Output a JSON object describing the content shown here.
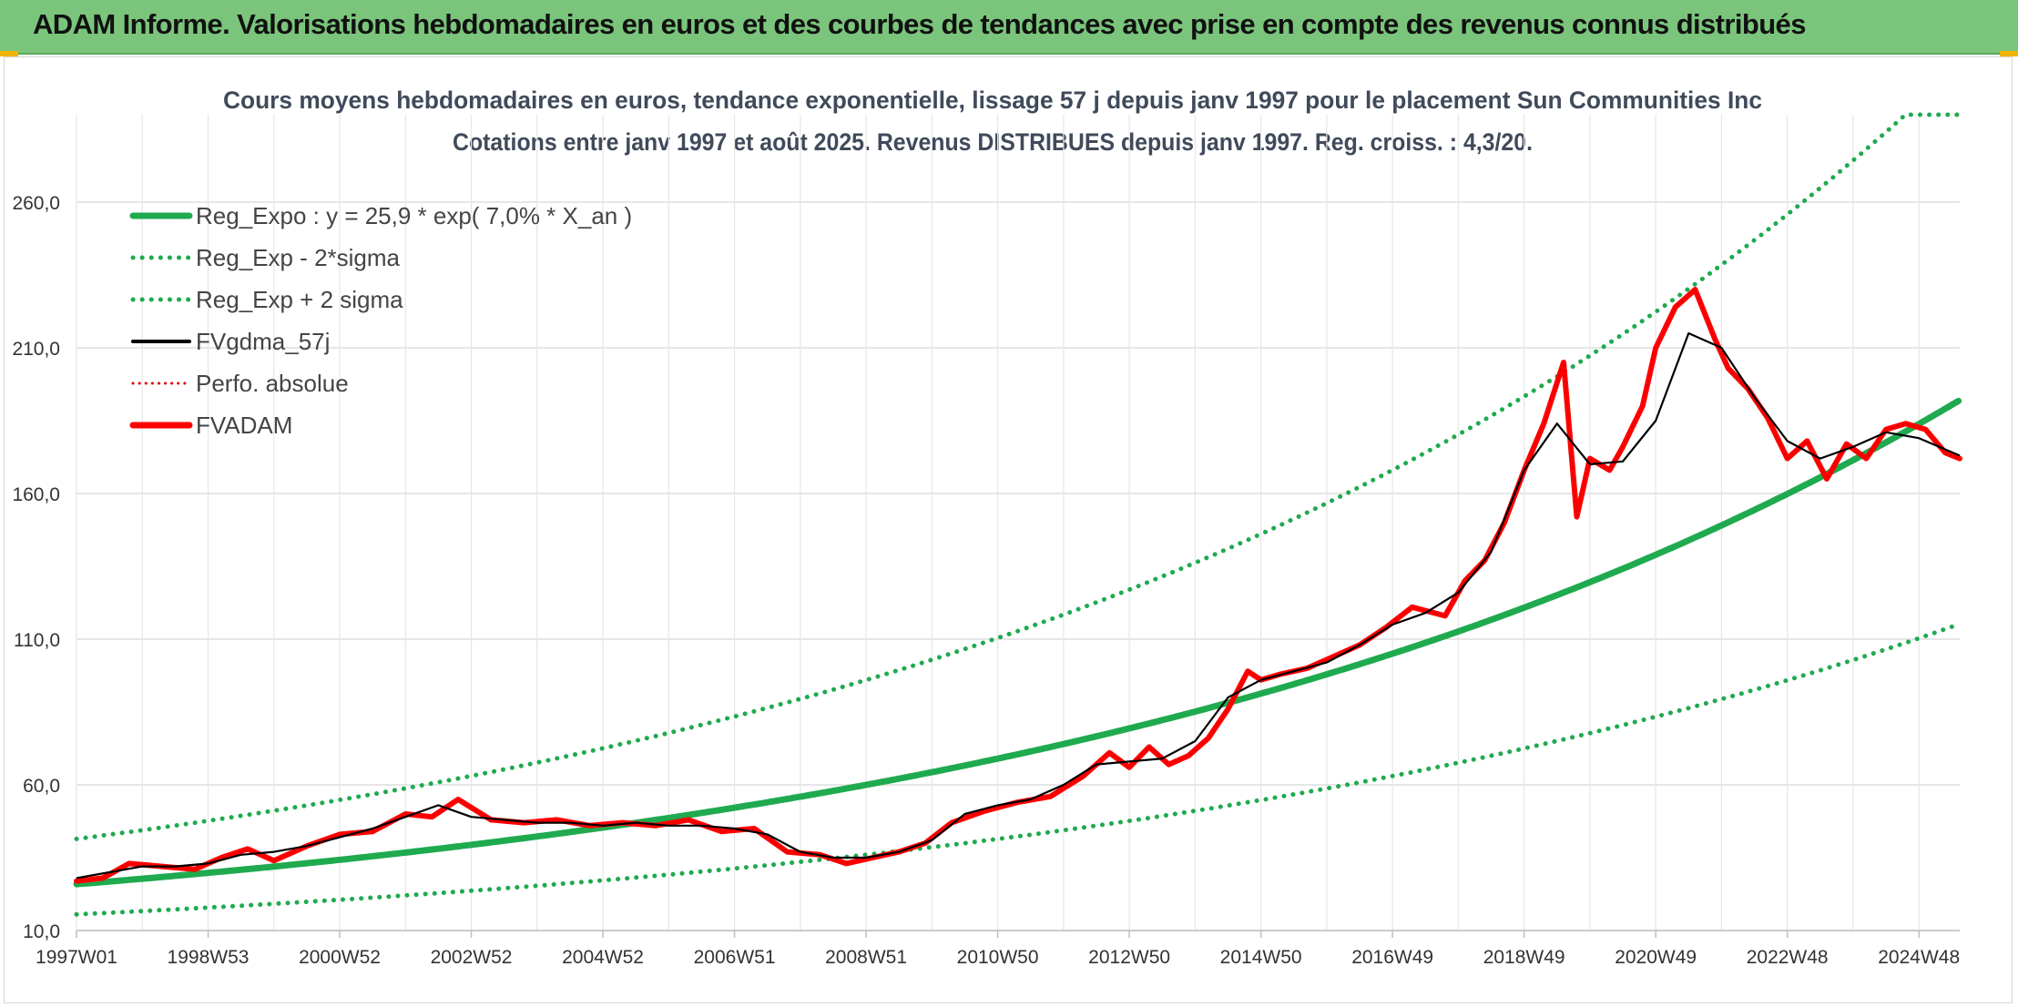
{
  "banner": {
    "title": "ADAM Informe. Valorisations hebdomadaires en euros et des courbes de tendances avec prise en compte des revenus connus distribués"
  },
  "chart_data": {
    "type": "line",
    "title": "Cours moyens hebdomadaires en euros, tendance exponentielle, lissage 57 j depuis janv 1997 pour le placement Sun Communities Inc",
    "subtitle": "Cotations entre janv 1997 et août 2025. Revenus DISTRIBUES depuis janv 1997. Reg. croiss. : 4,3/20.",
    "xlabel": "",
    "ylabel": "",
    "x_range": [
      1997.0,
      2025.62
    ],
    "ylim": [
      10,
      290
    ],
    "y_ticks": [
      10,
      60,
      110,
      160,
      210,
      260
    ],
    "y_tick_labels": [
      "10,0",
      "60,0",
      "110,0",
      "160,0",
      "210,0",
      "260,0"
    ],
    "x_ticks": [
      1997.0,
      1999.0,
      2001.0,
      2003.0,
      2005.0,
      2007.0,
      2009.0,
      2011.0,
      2013.0,
      2015.0,
      2017.0,
      2019.0,
      2021.0,
      2023.0,
      2025.0
    ],
    "x_tick_labels": [
      "1997W01",
      "1998W53",
      "2000W52",
      "2002W52",
      "2004W52",
      "2006W51",
      "2008W51",
      "2010W50",
      "2012W50",
      "2014W50",
      "2016W49",
      "2018W49",
      "2020W49",
      "2022W48",
      "2024W48"
    ],
    "grid": true,
    "legend_position": "top-left",
    "colors": {
      "regression": "#1faa4f",
      "sigma_band": "#1faa4f",
      "gdma": "#000000",
      "perfo": "#e00000",
      "fvadam": "#ff0000",
      "grid": "#dddddd",
      "axis_text": "#333333",
      "title_text": "#404a5a"
    },
    "legend": [
      {
        "key": "reg",
        "label": "Reg_Expo : y = 25,9 * exp( 7,0% *  X_an )",
        "style": "solid-thick",
        "color": "#1faa4f"
      },
      {
        "key": "minus",
        "label": "Reg_Exp - 2*sigma",
        "style": "dotted",
        "color": "#1faa4f"
      },
      {
        "key": "plus",
        "label": "Reg_Exp + 2 sigma",
        "style": "dotted",
        "color": "#1faa4f"
      },
      {
        "key": "gdma",
        "label": "FVgdma_57j",
        "style": "solid",
        "color": "#000000"
      },
      {
        "key": "perfo",
        "label": "Perfo. absolue",
        "style": "dotted-thin",
        "color": "#e00000"
      },
      {
        "key": "fvadam",
        "label": "FVADAM",
        "style": "solid-thick",
        "color": "#ff0000"
      }
    ],
    "regression": {
      "a": 25.9,
      "rate": 0.07,
      "start_year": 1997.0,
      "lower_factor": 0.6,
      "upper_factor": 1.6,
      "upper_cap": 290
    },
    "series": [
      {
        "name": "FVADAM",
        "x": [
          1997.0,
          1997.4,
          1997.8,
          1998.3,
          1998.8,
          1999.2,
          1999.6,
          2000.0,
          2000.5,
          2001.0,
          2001.5,
          2002.0,
          2002.4,
          2002.8,
          2003.3,
          2003.8,
          2004.3,
          2004.8,
          2005.3,
          2005.8,
          2006.3,
          2006.8,
          2007.3,
          2007.8,
          2008.3,
          2008.7,
          2009.1,
          2009.5,
          2009.9,
          2010.3,
          2010.8,
          2011.3,
          2011.8,
          2012.3,
          2012.7,
          2013.0,
          2013.3,
          2013.6,
          2013.9,
          2014.2,
          2014.5,
          2014.8,
          2015.0,
          2015.3,
          2015.7,
          2016.1,
          2016.5,
          2016.9,
          2017.3,
          2017.8,
          2018.1,
          2018.4,
          2018.7,
          2019.0,
          2019.3,
          2019.6,
          2019.8,
          2020.0,
          2020.15,
          2020.3,
          2020.5,
          2020.8,
          2021.0,
          2021.3,
          2021.6,
          2021.9,
          2022.1,
          2022.4,
          2022.7,
          2023.0,
          2023.3,
          2023.6,
          2023.9,
          2024.2,
          2024.5,
          2024.8,
          2025.1,
          2025.4,
          2025.62
        ],
        "values": [
          27,
          28,
          33,
          32,
          31,
          35,
          38,
          34,
          39,
          43,
          44,
          50,
          49,
          55,
          48,
          47,
          48,
          46,
          47,
          46,
          48,
          44,
          45,
          37,
          36,
          33,
          35,
          37,
          40,
          47,
          51,
          54,
          56,
          63,
          71,
          66,
          73,
          67,
          70,
          76,
          86,
          99,
          96,
          98,
          100,
          104,
          108,
          114,
          121,
          118,
          130,
          137,
          150,
          168,
          184,
          205,
          152,
          172,
          170,
          168,
          176,
          190,
          210,
          224,
          230,
          213,
          203,
          196,
          186,
          172,
          178,
          165,
          177,
          172,
          182,
          184,
          182,
          174,
          172
        ]
      },
      {
        "name": "FVgdma_57j",
        "x": [
          1997.0,
          1997.5,
          1998.0,
          1998.5,
          1999.0,
          1999.5,
          2000.0,
          2000.5,
          2001.0,
          2001.5,
          2002.0,
          2002.5,
          2003.0,
          2003.5,
          2004.0,
          2004.5,
          2005.0,
          2005.5,
          2006.0,
          2006.5,
          2007.0,
          2007.5,
          2008.0,
          2008.5,
          2009.0,
          2009.5,
          2010.0,
          2010.5,
          2011.0,
          2011.5,
          2012.0,
          2012.5,
          2013.0,
          2013.5,
          2014.0,
          2014.5,
          2015.0,
          2015.5,
          2016.0,
          2016.5,
          2017.0,
          2017.5,
          2018.0,
          2018.5,
          2019.0,
          2019.5,
          2020.0,
          2020.5,
          2021.0,
          2021.5,
          2022.0,
          2022.5,
          2023.0,
          2023.5,
          2024.0,
          2024.5,
          2025.0,
          2025.62
        ],
        "values": [
          28,
          30,
          32,
          32,
          33,
          36,
          37,
          39,
          42,
          45,
          49,
          53,
          49,
          48,
          47,
          47,
          46,
          47,
          46,
          46,
          45,
          43,
          37,
          35,
          35,
          37,
          41,
          50,
          53,
          55,
          60,
          67,
          68,
          69,
          75,
          90,
          96,
          99,
          102,
          108,
          115,
          119,
          126,
          140,
          168,
          184,
          170,
          171,
          185,
          215,
          210,
          193,
          178,
          172,
          176,
          181,
          179,
          173
        ]
      }
    ]
  }
}
